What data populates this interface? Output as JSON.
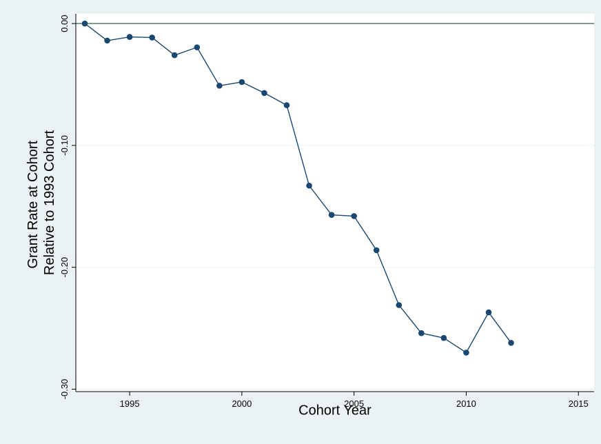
{
  "chart_data": {
    "type": "line",
    "title": "",
    "xlabel": "Cohort Year",
    "ylabel_lines": [
      "Grant Rate at Cohort",
      "Relative to 1993 Cohort"
    ],
    "xlim": [
      1992.6,
      2015.7
    ],
    "ylim": [
      -0.302,
      0.008
    ],
    "x_ticks": [
      {
        "value": 1995,
        "label": "1995"
      },
      {
        "value": 2000,
        "label": "2000"
      },
      {
        "value": 2005,
        "label": "2005"
      },
      {
        "value": 2010,
        "label": "2010"
      },
      {
        "value": 2015,
        "label": "2015"
      }
    ],
    "y_ticks": [
      {
        "value": 0,
        "label": "0.00"
      },
      {
        "value": -0.1,
        "label": "-0.10"
      },
      {
        "value": -0.2,
        "label": "-0.20"
      },
      {
        "value": -0.3,
        "label": "-0.30"
      }
    ],
    "grid": true,
    "reference_line_y": 0,
    "series": [
      {
        "x": [
          1993,
          1994,
          1995,
          1996,
          1997,
          1998,
          1999,
          2000,
          2001,
          2002,
          2003,
          2004,
          2005,
          2006,
          2007,
          2008,
          2009,
          2010,
          2011,
          2012
        ],
        "y": [
          0.0,
          -0.014,
          -0.011,
          -0.0115,
          -0.026,
          -0.0195,
          -0.051,
          -0.048,
          -0.057,
          -0.067,
          -0.133,
          -0.157,
          -0.158,
          -0.186,
          -0.231,
          -0.254,
          -0.258,
          -0.27,
          -0.237,
          -0.262
        ]
      }
    ],
    "colors": {
      "background": "#eaf2f3",
      "plot_area": "#ffffff",
      "series": "#1a476f",
      "grid": "#eaf2f3",
      "reference_line": "#2f5f5a",
      "axis": "#000000"
    }
  }
}
